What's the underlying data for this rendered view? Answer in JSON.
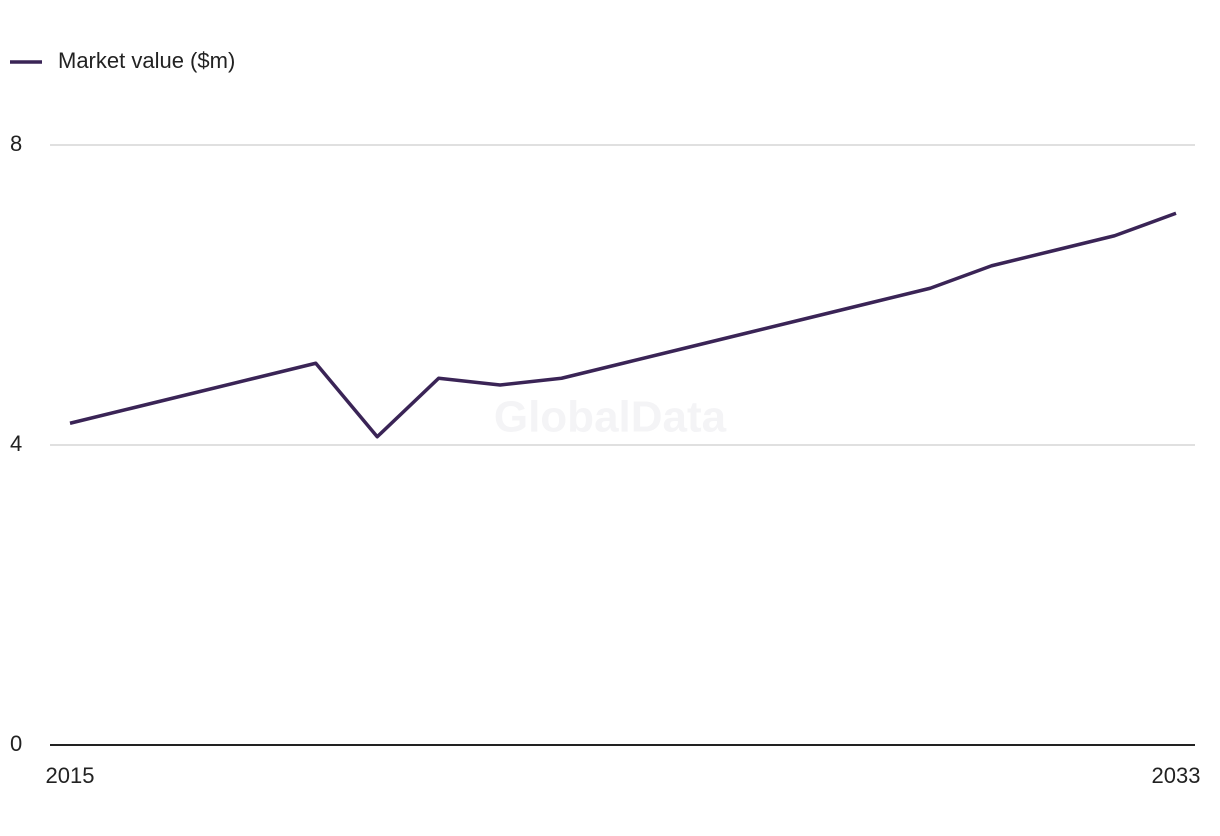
{
  "chart_data": {
    "type": "line",
    "legend_position": "top-left",
    "watermark": "GlobalData",
    "x": [
      2015,
      2016,
      2017,
      2018,
      2019,
      2020,
      2021,
      2022,
      2023,
      2024,
      2025,
      2026,
      2027,
      2028,
      2029,
      2030,
      2031,
      2032,
      2033
    ],
    "series": [
      {
        "name": "Market value ($m)",
        "color": "#3a2456",
        "values": [
          4.29,
          4.49,
          4.69,
          4.89,
          5.09,
          4.11,
          4.89,
          4.8,
          4.89,
          5.09,
          5.29,
          5.49,
          5.69,
          5.89,
          6.09,
          6.39,
          6.59,
          6.79,
          7.09
        ]
      }
    ],
    "xlim": [
      2015,
      2033
    ],
    "xticks": [
      2015,
      2033
    ],
    "ylim": [
      0,
      8
    ],
    "yticks": [
      0,
      4,
      8
    ],
    "grid": true
  }
}
